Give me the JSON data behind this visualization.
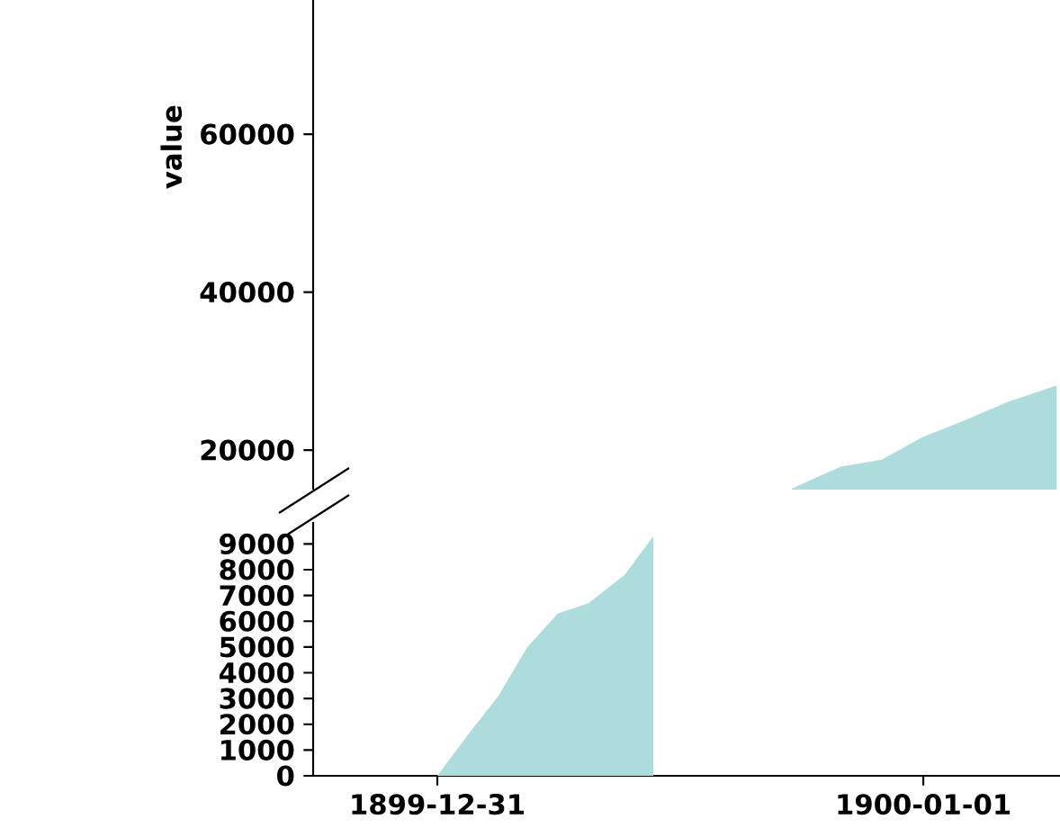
{
  "chart_data": [
    {
      "type": "area",
      "ylabel": "value",
      "xticks": [
        "1899-12-31",
        "1900-01-01"
      ],
      "ylim": [
        15000,
        77000
      ],
      "yticks": [
        20000,
        40000,
        60000
      ],
      "tick_labels": "y",
      "x": [
        "1899-12-31T17:30",
        "1899-12-31T19:55",
        "1899-12-31T21:57",
        "1900-01-01T00:00",
        "1900-01-01T01:47",
        "1900-01-01T04:11",
        "1900-01-01T06:35"
      ],
      "series": [
        {
          "color": "#acdcdc",
          "values": [
            15100,
            17900,
            18800,
            21700,
            23500,
            26100,
            28200
          ]
        }
      ]
    },
    {
      "type": "area",
      "xlim": [
        "1899-12-30T17:52",
        "1900-01-01T06:45"
      ],
      "xticks": [
        "1899-12-31",
        "1900-01-01"
      ],
      "ylim": [
        0,
        9850
      ],
      "yticks": [
        0,
        1000,
        2000,
        3000,
        4000,
        5000,
        6000,
        7000,
        8000,
        9000
      ],
      "x": [
        "1899-12-31T00:00",
        "1899-12-31T01:31",
        "1899-12-31T03:01",
        "1899-12-31T04:27",
        "1899-12-31T05:57",
        "1899-12-31T07:28",
        "1899-12-31T09:15",
        "1899-12-31T10:40"
      ],
      "series": [
        {
          "color": "#acdcdc",
          "values": [
            0,
            1600,
            3100,
            5000,
            6300,
            6700,
            7800,
            9300
          ]
        }
      ]
    }
  ]
}
